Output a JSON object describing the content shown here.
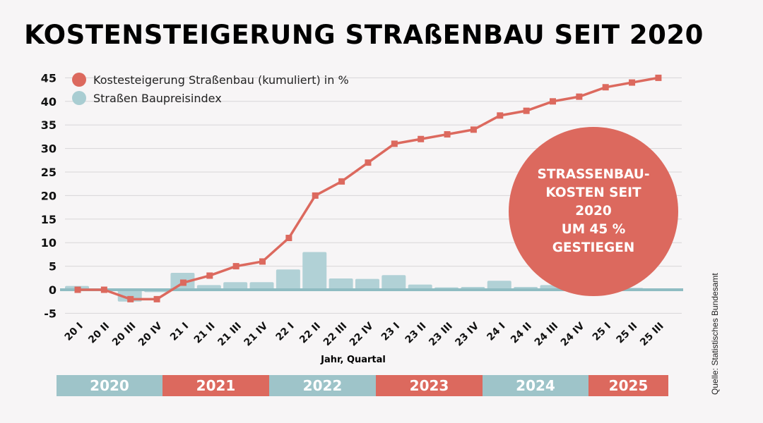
{
  "title": "KOSTENSTEIGERUNG  STRAßENBAU SEIT 2020",
  "callout": "STRASSENBAU-\nKOSTEN SEIT\n2020\nUM 45 %\nGESTIEGEN",
  "source": "Quelle: Statistisches Bundesamt",
  "colors": {
    "line": "#dc695e",
    "bar": "#b1d1d6",
    "axis": "#8fbcc2"
  },
  "years": [
    {
      "label": "2020",
      "color": "#9ec4c9"
    },
    {
      "label": "2021",
      "color": "#dc695e"
    },
    {
      "label": "2022",
      "color": "#9ec4c9"
    },
    {
      "label": "2023",
      "color": "#dc695e"
    },
    {
      "label": "2024",
      "color": "#9ec4c9"
    },
    {
      "label": "2025",
      "color": "#dc695e"
    }
  ],
  "chart_data": {
    "type": "bar+line",
    "xlabel": "Jahr, Quartal",
    "ylim": [
      -5,
      45
    ],
    "yticks": [
      -5,
      0,
      5,
      10,
      15,
      20,
      25,
      30,
      35,
      40,
      45
    ],
    "grid": true,
    "legend_position": "top-left",
    "categories": [
      "20 I",
      "20 II",
      "20 III",
      "20 IV",
      "21 I",
      "21 II",
      "21 III",
      "21 IV",
      "22 I",
      "22 II",
      "22 III",
      "22 IV",
      "23 I",
      "23 II",
      "23 III",
      "23 IV",
      "24 I",
      "24 II",
      "24 III",
      "24 IV",
      "25 I",
      "25 II",
      "25 III"
    ],
    "series": [
      {
        "name": "Kostesteigerung Straßenbau (kumuliert) in %",
        "type": "line",
        "values": [
          0,
          0,
          -2,
          -2,
          1.5,
          3,
          5,
          6,
          11,
          20,
          23,
          27,
          31,
          32,
          33,
          34,
          37,
          38,
          40,
          41,
          43,
          44,
          45
        ]
      },
      {
        "name": "Straßen Baupreisindex",
        "type": "bar",
        "values": [
          0.8,
          0.1,
          -2.5,
          -0.5,
          3.6,
          1.0,
          1.6,
          1.6,
          4.3,
          8.0,
          2.4,
          2.3,
          3.1,
          1.1,
          0.5,
          0.6,
          1.9,
          0.6,
          1.0,
          0.8,
          0.6,
          0.4,
          0.2
        ]
      }
    ]
  }
}
